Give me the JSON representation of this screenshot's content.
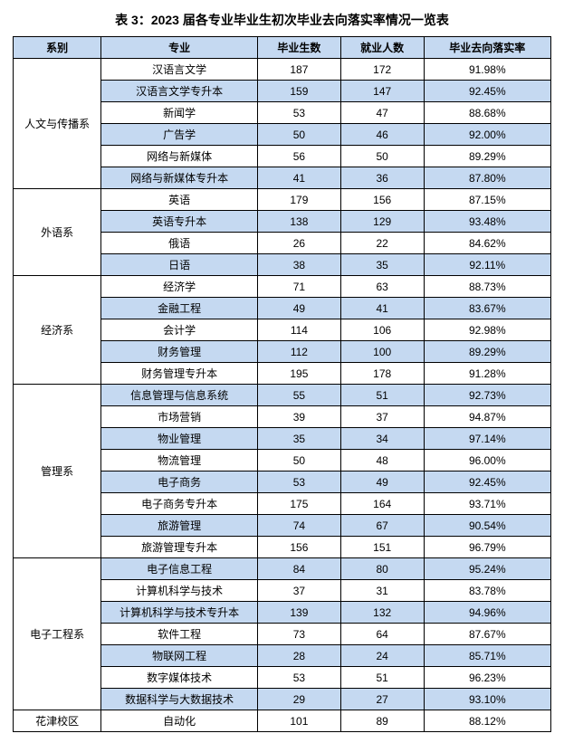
{
  "title": "表 3：2023 届各专业毕业生初次毕业去向落实率情况一览表",
  "columns": [
    "系别",
    "专业",
    "毕业生数",
    "就业人数",
    "毕业去向落实率"
  ],
  "header_bg": "#c5d9f1",
  "row_alt_bg": "#c5d9f1",
  "row_bg": "#ffffff",
  "border_color": "#000000",
  "groups": [
    {
      "dept": "人文与传播系",
      "rows": [
        {
          "major": "汉语言文学",
          "grad": "187",
          "emp": "172",
          "rate": "91.98%"
        },
        {
          "major": "汉语言文学专升本",
          "grad": "159",
          "emp": "147",
          "rate": "92.45%"
        },
        {
          "major": "新闻学",
          "grad": "53",
          "emp": "47",
          "rate": "88.68%"
        },
        {
          "major": "广告学",
          "grad": "50",
          "emp": "46",
          "rate": "92.00%"
        },
        {
          "major": "网络与新媒体",
          "grad": "56",
          "emp": "50",
          "rate": "89.29%"
        },
        {
          "major": "网络与新媒体专升本",
          "grad": "41",
          "emp": "36",
          "rate": "87.80%"
        }
      ]
    },
    {
      "dept": "外语系",
      "rows": [
        {
          "major": "英语",
          "grad": "179",
          "emp": "156",
          "rate": "87.15%"
        },
        {
          "major": "英语专升本",
          "grad": "138",
          "emp": "129",
          "rate": "93.48%"
        },
        {
          "major": "俄语",
          "grad": "26",
          "emp": "22",
          "rate": "84.62%"
        },
        {
          "major": "日语",
          "grad": "38",
          "emp": "35",
          "rate": "92.11%"
        }
      ]
    },
    {
      "dept": "经济系",
      "rows": [
        {
          "major": "经济学",
          "grad": "71",
          "emp": "63",
          "rate": "88.73%"
        },
        {
          "major": "金融工程",
          "grad": "49",
          "emp": "41",
          "rate": "83.67%"
        },
        {
          "major": "会计学",
          "grad": "114",
          "emp": "106",
          "rate": "92.98%"
        },
        {
          "major": "财务管理",
          "grad": "112",
          "emp": "100",
          "rate": "89.29%"
        },
        {
          "major": "财务管理专升本",
          "grad": "195",
          "emp": "178",
          "rate": "91.28%"
        }
      ]
    },
    {
      "dept": "管理系",
      "rows": [
        {
          "major": "信息管理与信息系统",
          "grad": "55",
          "emp": "51",
          "rate": "92.73%"
        },
        {
          "major": "市场营销",
          "grad": "39",
          "emp": "37",
          "rate": "94.87%"
        },
        {
          "major": "物业管理",
          "grad": "35",
          "emp": "34",
          "rate": "97.14%"
        },
        {
          "major": "物流管理",
          "grad": "50",
          "emp": "48",
          "rate": "96.00%"
        },
        {
          "major": "电子商务",
          "grad": "53",
          "emp": "49",
          "rate": "92.45%"
        },
        {
          "major": "电子商务专升本",
          "grad": "175",
          "emp": "164",
          "rate": "93.71%"
        },
        {
          "major": "旅游管理",
          "grad": "74",
          "emp": "67",
          "rate": "90.54%"
        },
        {
          "major": "旅游管理专升本",
          "grad": "156",
          "emp": "151",
          "rate": "96.79%"
        }
      ]
    },
    {
      "dept": "电子工程系",
      "rows": [
        {
          "major": "电子信息工程",
          "grad": "84",
          "emp": "80",
          "rate": "95.24%"
        },
        {
          "major": "计算机科学与技术",
          "grad": "37",
          "emp": "31",
          "rate": "83.78%"
        },
        {
          "major": "计算机科学与技术专升本",
          "grad": "139",
          "emp": "132",
          "rate": "94.96%"
        },
        {
          "major": "软件工程",
          "grad": "73",
          "emp": "64",
          "rate": "87.67%"
        },
        {
          "major": "物联网工程",
          "grad": "28",
          "emp": "24",
          "rate": "85.71%"
        },
        {
          "major": "数字媒体技术",
          "grad": "53",
          "emp": "51",
          "rate": "96.23%"
        },
        {
          "major": "数据科学与大数据技术",
          "grad": "29",
          "emp": "27",
          "rate": "93.10%"
        }
      ]
    },
    {
      "dept": "花津校区",
      "rows": [
        {
          "major": "自动化",
          "grad": "101",
          "emp": "89",
          "rate": "88.12%"
        }
      ]
    }
  ]
}
